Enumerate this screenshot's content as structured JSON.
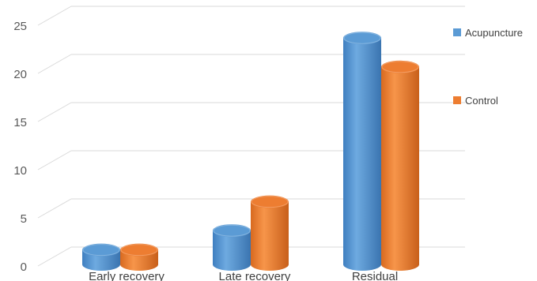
{
  "chart_data": {
    "type": "bar",
    "style": "3d-cylinder",
    "categories": [
      "Early recovery",
      "Late recovery",
      "Residual"
    ],
    "series": [
      {
        "name": "Acupuncture",
        "color": "#5B9BD5",
        "values": [
          2,
          4,
          24
        ]
      },
      {
        "name": "Control",
        "color": "#ED7D31",
        "values": [
          2,
          7,
          21
        ]
      }
    ],
    "yticks": [
      0,
      5,
      10,
      15,
      20,
      25
    ],
    "ylim": [
      0,
      25
    ],
    "grid": true,
    "legend_position": "right"
  }
}
